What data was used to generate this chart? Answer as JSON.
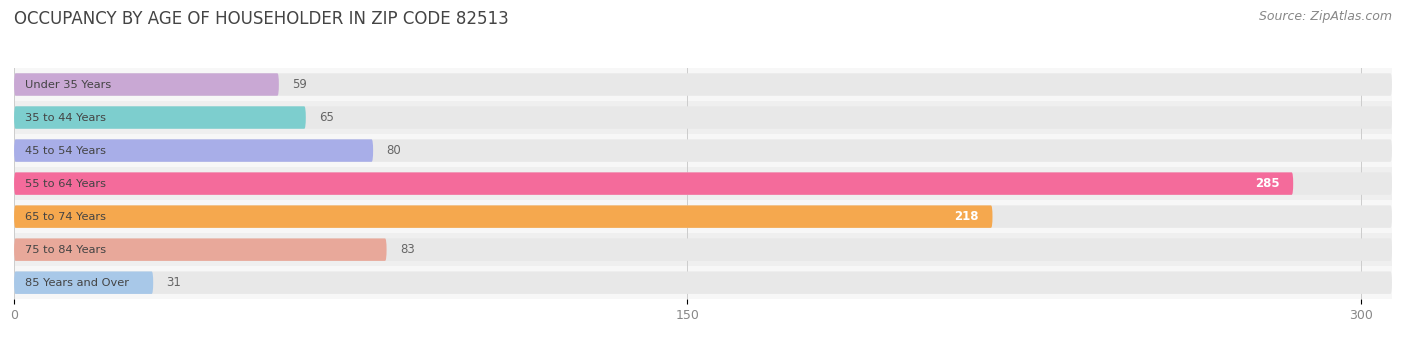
{
  "title": "OCCUPANCY BY AGE OF HOUSEHOLDER IN ZIP CODE 82513",
  "source": "Source: ZipAtlas.com",
  "categories": [
    "Under 35 Years",
    "35 to 44 Years",
    "45 to 54 Years",
    "55 to 64 Years",
    "65 to 74 Years",
    "75 to 84 Years",
    "85 Years and Over"
  ],
  "values": [
    59,
    65,
    80,
    285,
    218,
    83,
    31
  ],
  "bar_colors": [
    "#c9a8d4",
    "#7dcece",
    "#a8aee8",
    "#f46b9b",
    "#f5a84e",
    "#e8a89a",
    "#a8c8e8"
  ],
  "bar_bg_color": "#e8e8e8",
  "label_colors": [
    "#888888",
    "#888888",
    "#888888",
    "#ffffff",
    "#ffffff",
    "#888888",
    "#888888"
  ],
  "xlim": [
    0,
    307
  ],
  "xticks": [
    0,
    150,
    300
  ],
  "title_fontsize": 12,
  "source_fontsize": 9,
  "bar_height": 0.68,
  "background_color": "#ffffff",
  "row_bg_colors": [
    "#f7f7f7",
    "#efefef"
  ]
}
